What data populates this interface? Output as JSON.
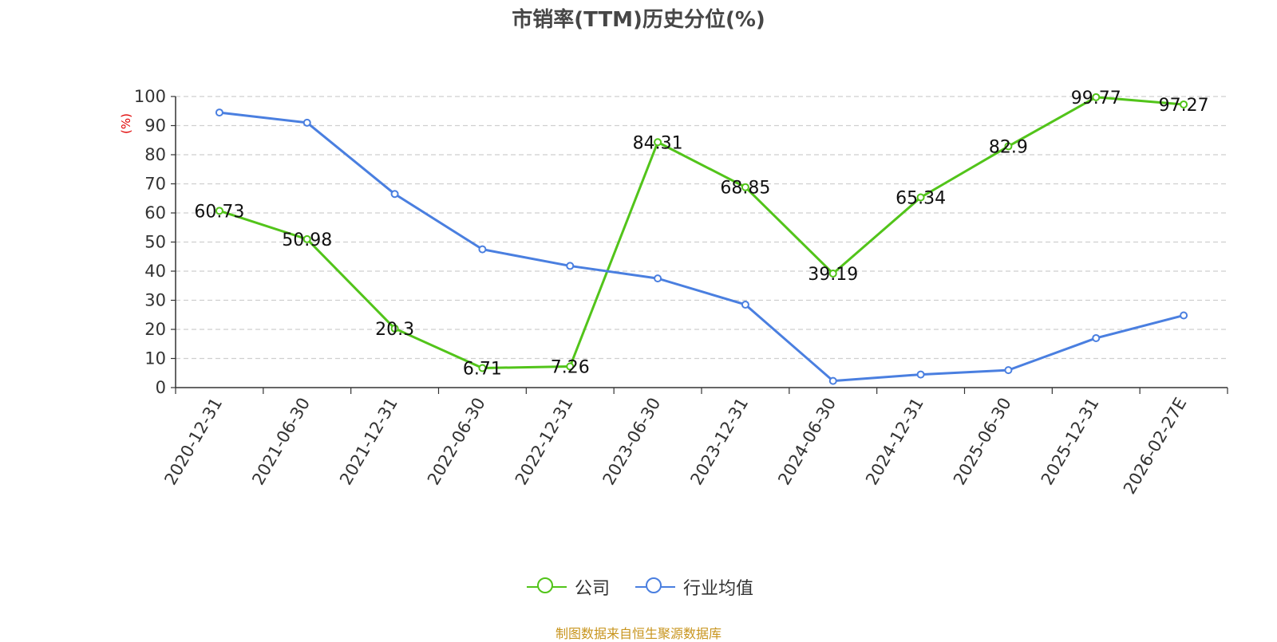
{
  "chart_data": {
    "type": "line",
    "title": "市销率(TTM)历史分位(%)",
    "ylabel": "(%)",
    "ylim": [
      0,
      100
    ],
    "yticks": [
      "0",
      "10",
      "20",
      "30",
      "40",
      "50",
      "60",
      "70",
      "80",
      "90",
      "100"
    ],
    "grid": true,
    "categories": [
      "2020-12-31",
      "2021-06-30",
      "2021-12-31",
      "2022-06-30",
      "2022-12-31",
      "2023-06-30",
      "2023-12-31",
      "2024-06-30",
      "2024-12-31",
      "2025-06-30",
      "2025-12-31",
      "2026-02-27E"
    ],
    "series": [
      {
        "name": "公司",
        "color": "#52c41a",
        "values": [
          60.73,
          50.98,
          20.3,
          6.71,
          7.26,
          84.31,
          68.85,
          39.19,
          65.34,
          82.9,
          99.77,
          97.27
        ],
        "labels": [
          "60.73",
          "50.98",
          "20.3",
          "6.71",
          "7.26",
          "84.31",
          "68.85",
          "39.19",
          "65.34",
          "82.9",
          "99.77",
          "97.27"
        ]
      },
      {
        "name": "行业均值",
        "color": "#4a7fe0",
        "values": [
          94.5,
          91,
          66.5,
          47.5,
          41.8,
          37.5,
          28.5,
          2.3,
          4.5,
          6,
          17,
          24.8
        ]
      }
    ],
    "legend_position": "bottom-center"
  },
  "source_note": "制图数据来自恒生聚源数据库"
}
